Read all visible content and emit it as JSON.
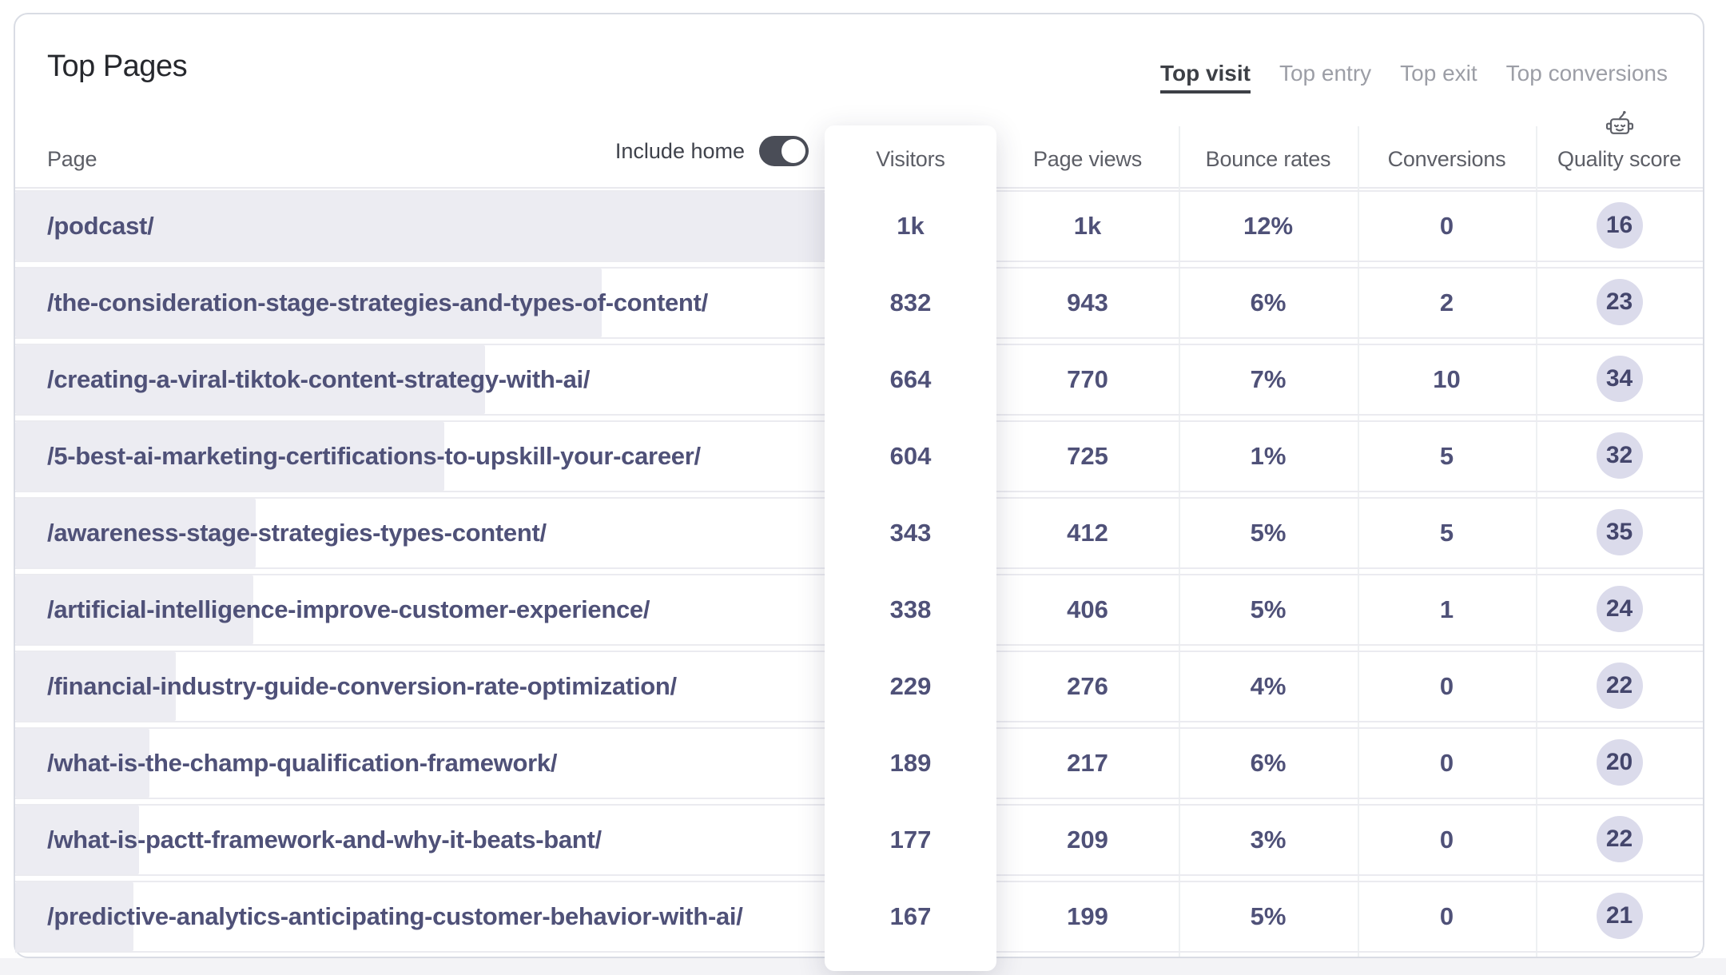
{
  "card": {
    "title": "Top Pages",
    "tabs": [
      {
        "label": "Top visit",
        "active": true
      },
      {
        "label": "Top entry",
        "active": false
      },
      {
        "label": "Top exit",
        "active": false
      },
      {
        "label": "Top conversions",
        "active": false
      }
    ],
    "controls": {
      "include_home_label": "Include home",
      "include_home_on": true
    },
    "columns": {
      "page": "Page",
      "visitors": "Visitors",
      "page_views": "Page views",
      "bounce_rates": "Bounce rates",
      "conversions": "Conversions",
      "quality_score": "Quality score",
      "quality_icon": "robot-icon"
    },
    "rows": [
      {
        "page": "/podcast/",
        "visitors": "1k",
        "page_views": "1k",
        "bounce_rate": "12%",
        "conversions": "0",
        "quality_score": "16",
        "bar_pct": 100
      },
      {
        "page": "/the-consideration-stage-strategies-and-types-of-content/",
        "visitors": "832",
        "page_views": "943",
        "bounce_rate": "6%",
        "conversions": "2",
        "quality_score": "23",
        "bar_pct": 72.5
      },
      {
        "page": "/creating-a-viral-tiktok-content-strategy-with-ai/",
        "visitors": "664",
        "page_views": "770",
        "bounce_rate": "7%",
        "conversions": "10",
        "quality_score": "34",
        "bar_pct": 58
      },
      {
        "page": "/5-best-ai-marketing-certifications-to-upskill-your-career/",
        "visitors": "604",
        "page_views": "725",
        "bounce_rate": "1%",
        "conversions": "5",
        "quality_score": "32",
        "bar_pct": 53
      },
      {
        "page": "/awareness-stage-strategies-types-content/",
        "visitors": "343",
        "page_views": "412",
        "bounce_rate": "5%",
        "conversions": "5",
        "quality_score": "35",
        "bar_pct": 29.7
      },
      {
        "page": "/artificial-intelligence-improve-customer-experience/",
        "visitors": "338",
        "page_views": "406",
        "bounce_rate": "5%",
        "conversions": "1",
        "quality_score": "24",
        "bar_pct": 29.4
      },
      {
        "page": "/financial-industry-guide-conversion-rate-optimization/",
        "visitors": "229",
        "page_views": "276",
        "bounce_rate": "4%",
        "conversions": "0",
        "quality_score": "22",
        "bar_pct": 19.8
      },
      {
        "page": "/what-is-the-champ-qualification-framework/",
        "visitors": "189",
        "page_views": "217",
        "bounce_rate": "6%",
        "conversions": "0",
        "quality_score": "20",
        "bar_pct": 16.6
      },
      {
        "page": "/what-is-pactt-framework-and-why-it-beats-bant/",
        "visitors": "177",
        "page_views": "209",
        "bounce_rate": "3%",
        "conversions": "0",
        "quality_score": "22",
        "bar_pct": 15.3
      },
      {
        "page": "/predictive-analytics-anticipating-customer-behavior-with-ai/",
        "visitors": "167",
        "page_views": "199",
        "bounce_rate": "5%",
        "conversions": "0",
        "quality_score": "21",
        "bar_pct": 14.6
      }
    ],
    "colors": {
      "bar_fill": "#ececf2",
      "metric_text": "#4f5178",
      "badge_bg": "#dbdbeb",
      "toggle_bg": "#4a4d57",
      "tab_active": "#3d4046",
      "tab_inactive": "#9c9ea6"
    }
  }
}
